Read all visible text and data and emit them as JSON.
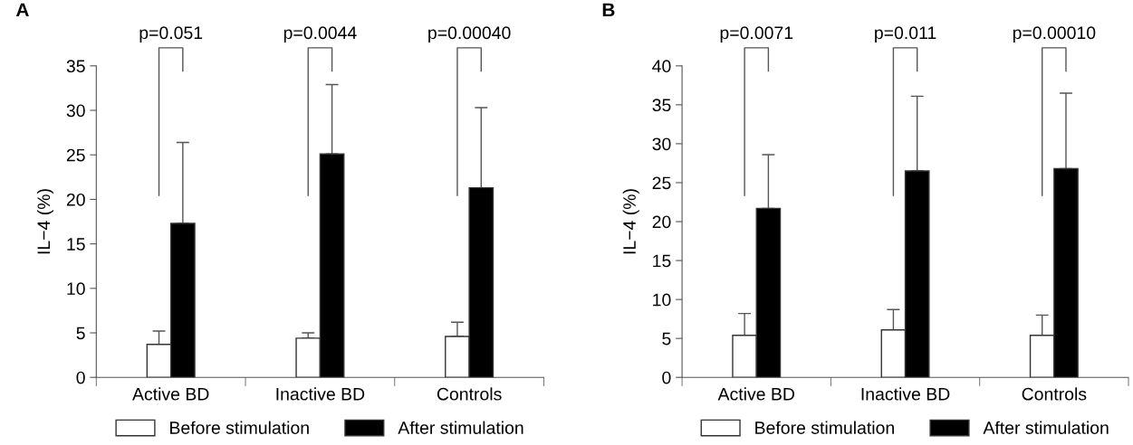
{
  "chart_data": [
    {
      "type": "bar",
      "title": "A",
      "ylabel": "IL−4 (%)",
      "categories": [
        "Active BD",
        "Inactive BD",
        "Controls"
      ],
      "series": [
        {
          "name": "Before stimulation",
          "color": "#ffffff",
          "values": [
            3.7,
            4.4,
            4.6
          ],
          "errors": [
            [
              3.7,
              5.2
            ],
            [
              4.4,
              5.0
            ],
            [
              4.6,
              6.2
            ]
          ]
        },
        {
          "name": "After stimulation",
          "color": "#000000",
          "values": [
            17.3,
            25.1,
            21.3
          ],
          "errors": [
            [
              17.3,
              26.4
            ],
            [
              25.1,
              32.9
            ],
            [
              21.3,
              30.3
            ]
          ]
        }
      ],
      "ylim": [
        0,
        35
      ],
      "yticks": [
        0,
        5,
        10,
        15,
        20,
        25,
        30,
        35
      ],
      "grid": false,
      "legend": "bottom",
      "annotations": [
        "p=0.051",
        "p=0.0044",
        "p=0.00040"
      ]
    },
    {
      "type": "bar",
      "title": "B",
      "ylabel": "IL−4 (%)",
      "categories": [
        "Active BD",
        "Inactive BD",
        "Controls"
      ],
      "series": [
        {
          "name": "Before stimulation",
          "color": "#ffffff",
          "values": [
            5.4,
            6.1,
            5.4
          ],
          "errors": [
            [
              5.4,
              8.2
            ],
            [
              6.1,
              8.7
            ],
            [
              5.4,
              8.0
            ]
          ]
        },
        {
          "name": "After stimulation",
          "color": "#000000",
          "values": [
            21.7,
            26.5,
            26.8
          ],
          "errors": [
            [
              21.7,
              28.6
            ],
            [
              26.5,
              36.1
            ],
            [
              26.8,
              36.5
            ]
          ]
        }
      ],
      "ylim": [
        0,
        40
      ],
      "yticks": [
        0,
        5,
        10,
        15,
        20,
        25,
        30,
        35,
        40
      ],
      "grid": false,
      "legend": "bottom",
      "annotations": [
        "p=0.0071",
        "p=0.011",
        "p=0.00010"
      ]
    }
  ]
}
